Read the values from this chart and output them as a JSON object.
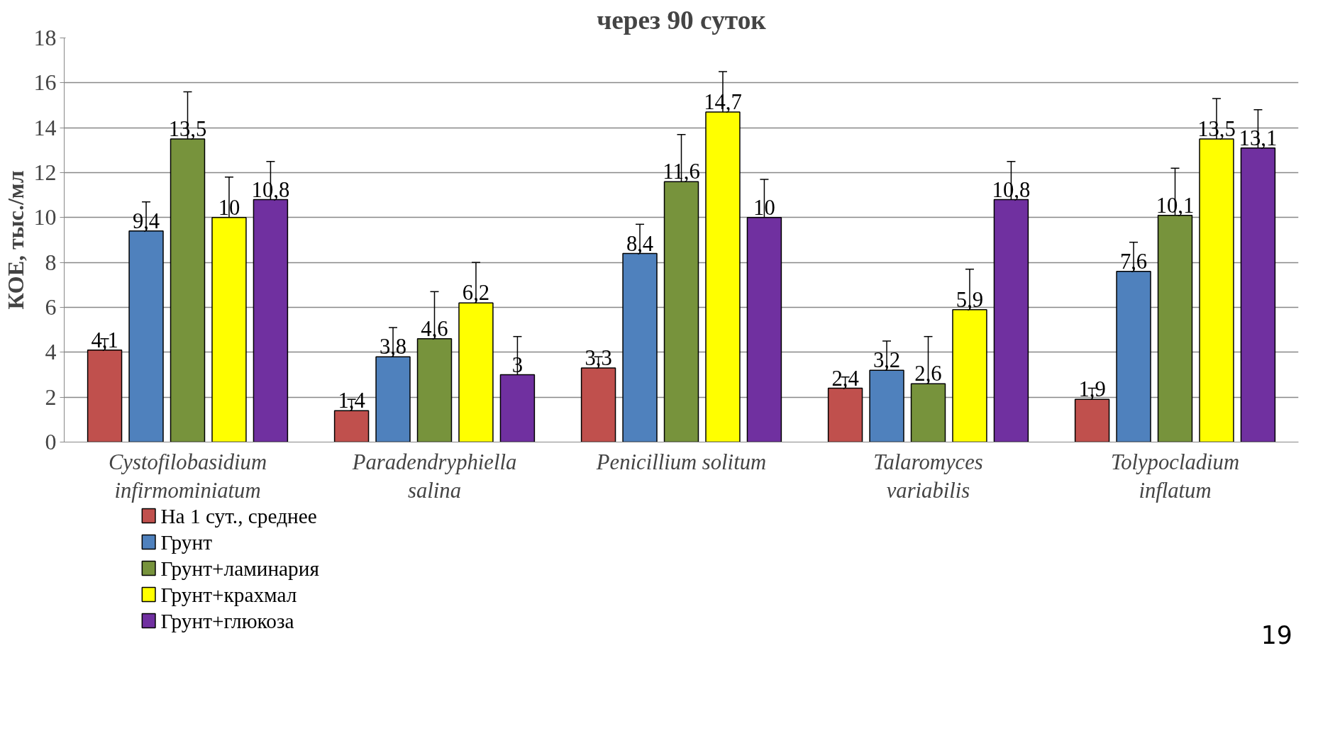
{
  "chart_data": {
    "type": "bar",
    "title": "через 90 суток",
    "ylabel": "КОЕ, тыс./мл",
    "categories": [
      "Cystofilobasidium\ninfirmominiatum",
      "Paradendryphiella\nsalina",
      "Penicillium solitum",
      "Talaromyces\nvariabilis",
      "Tolypocladium\ninflatum"
    ],
    "series": [
      {
        "name": "На 1 сут., среднее",
        "color": "#c0504d",
        "values": [
          4.1,
          1.4,
          3.3,
          2.4,
          1.9
        ],
        "errors": [
          0.5,
          0.5,
          0.5,
          0.5,
          0.5
        ]
      },
      {
        "name": "Грунт",
        "color": "#4f81bd",
        "values": [
          9.4,
          3.8,
          8.4,
          3.2,
          7.6
        ],
        "errors": [
          1.3,
          1.3,
          1.3,
          1.3,
          1.3
        ]
      },
      {
        "name": "Грунт+ламинария",
        "color": "#77933c",
        "values": [
          13.5,
          4.6,
          11.6,
          2.6,
          10.1
        ],
        "errors": [
          2.1,
          2.1,
          2.1,
          2.1,
          2.1
        ]
      },
      {
        "name": "Грунт+крахмал",
        "color": "#ffff00",
        "values": [
          10,
          6.2,
          14.7,
          5.9,
          13.5
        ],
        "errors": [
          1.8,
          1.8,
          1.8,
          1.8,
          1.8
        ]
      },
      {
        "name": "Грунт+глюкоза",
        "color": "#7030a0",
        "values": [
          10.8,
          3,
          10,
          10.8,
          13.1
        ],
        "errors": [
          1.7,
          1.7,
          1.7,
          1.7,
          1.7
        ]
      }
    ],
    "ylim": [
      0,
      18
    ],
    "yticks": [
      0,
      2,
      4,
      6,
      8,
      10,
      12,
      14,
      16,
      18
    ],
    "grid": "y",
    "legend": "bottom left",
    "value_labels": [
      [
        "4,1",
        "1,4",
        "3,3",
        "2,4",
        "1,9"
      ],
      [
        "9,4",
        "3,8",
        "8,4",
        "3,2",
        "7,6"
      ],
      [
        "13,5",
        "4,6",
        "11,6",
        "2,6",
        "10,1"
      ],
      [
        "10",
        "6,2",
        "14,7",
        "5,9",
        "13,5"
      ],
      [
        "10,8",
        "3",
        "10",
        "10,8",
        "13,1"
      ]
    ],
    "annotations": [
      "19"
    ]
  }
}
